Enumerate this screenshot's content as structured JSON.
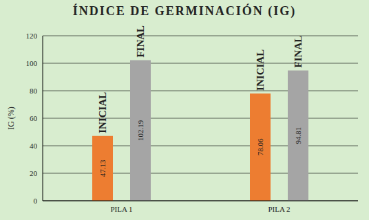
{
  "chart_data": {
    "type": "bar",
    "title": "ÍNDICE DE GERMINACIÓN (IG)",
    "y_label": "IG (%)",
    "categories": [
      "PILA 1",
      "PILA 2"
    ],
    "series": [
      {
        "name": "INICIAL",
        "color": "#ed7d31",
        "values": [
          47.13,
          78.06
        ]
      },
      {
        "name": "FINAL",
        "color": "#a5a5a5",
        "values": [
          102.19,
          94.81
        ]
      }
    ],
    "ylim": [
      0,
      120
    ],
    "yticks": [
      0,
      20,
      40,
      60,
      80,
      100,
      120
    ],
    "grid": true,
    "data_labels": true
  }
}
